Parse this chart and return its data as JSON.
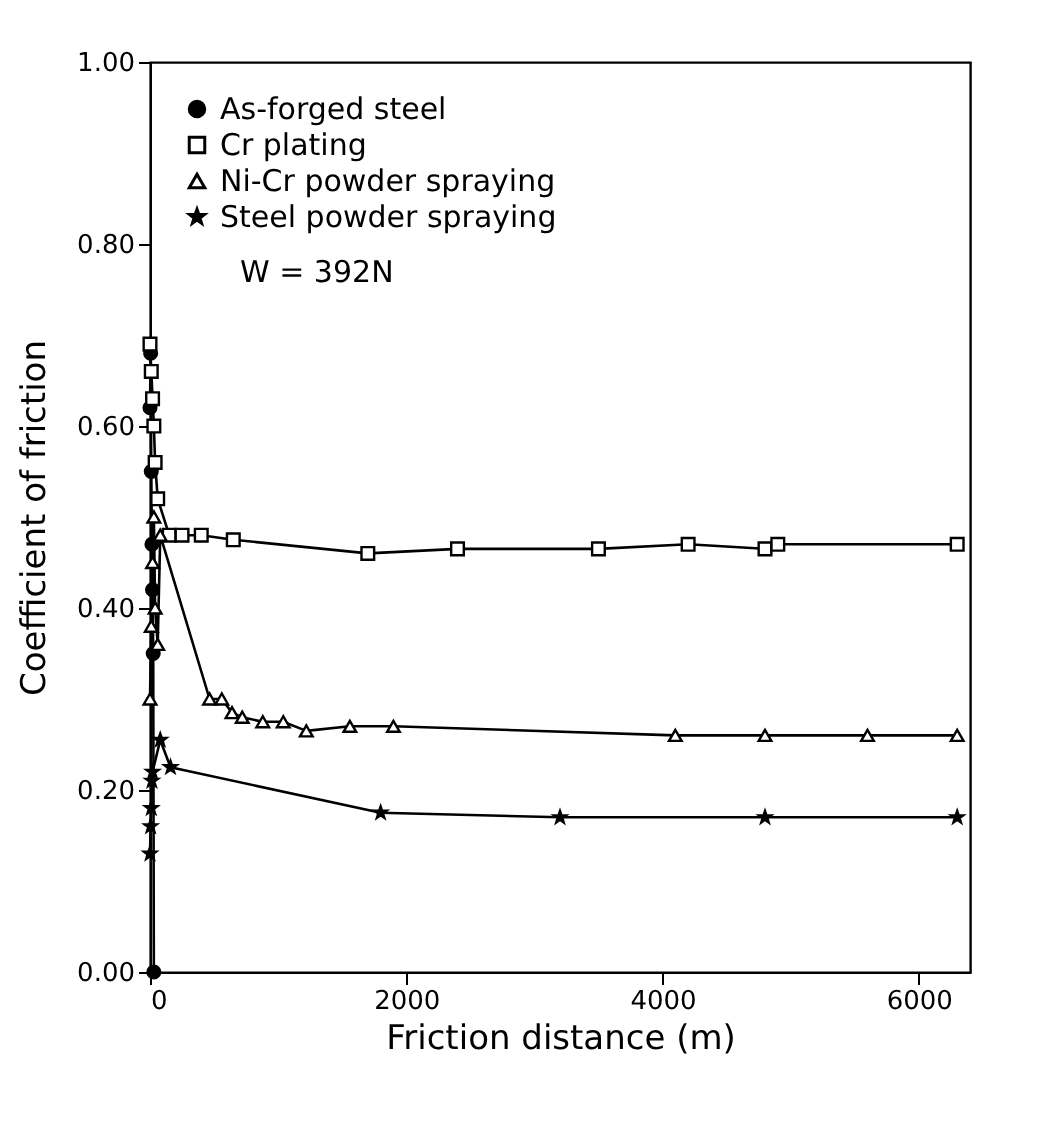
{
  "chart_data": {
    "type": "line",
    "xlabel": "Friction distance (m)",
    "ylabel": "Coefficient of friction",
    "xlim": [
      0,
      6400
    ],
    "xticks": [
      0,
      2000,
      4000,
      6000
    ],
    "ylim": [
      0,
      1
    ],
    "yticks": [
      {
        "value": 0,
        "label": "0.00"
      },
      {
        "value": 0.2,
        "label": "0.20"
      },
      {
        "value": 0.4,
        "label": "0.40"
      },
      {
        "value": 0.6,
        "label": "0.60"
      },
      {
        "value": 0.8,
        "label": "0.80"
      },
      {
        "value": 1,
        "label": "1.00"
      }
    ],
    "legend": "top left",
    "grid": false,
    "line_style": "solid",
    "annotations": [
      "W = 392N"
    ],
    "series": [
      {
        "name": "As-forged steel",
        "color": "#000000",
        "marker": "circle",
        "x": [
          0,
          5,
          10,
          15,
          20,
          25,
          30
        ],
        "values": [
          0.62,
          0.68,
          0.55,
          0.47,
          0.42,
          0.35,
          0.0
        ]
      },
      {
        "name": "Cr plating",
        "color": "#000000",
        "marker": "square",
        "x": [
          0,
          10,
          20,
          30,
          40,
          60,
          150,
          250,
          400,
          650,
          1700,
          2400,
          3500,
          4200,
          4800,
          4900,
          6300
        ],
        "values": [
          0.69,
          0.66,
          0.63,
          0.6,
          0.56,
          0.52,
          0.48,
          0.48,
          0.48,
          0.475,
          0.46,
          0.465,
          0.465,
          0.47,
          0.465,
          0.47,
          0.47
        ]
      },
      {
        "name": "Ni-Cr powder spraying",
        "color": "#000000",
        "marker": "triangle",
        "x": [
          0,
          10,
          20,
          30,
          40,
          60,
          80,
          465,
          560,
          640,
          720,
          880,
          1040,
          1220,
          1560,
          1900,
          4100,
          4800,
          5600,
          6300
        ],
        "values": [
          0.3,
          0.38,
          0.45,
          0.5,
          0.4,
          0.36,
          0.48,
          0.3,
          0.3,
          0.285,
          0.28,
          0.275,
          0.275,
          0.265,
          0.27,
          0.27,
          0.26,
          0.26,
          0.26,
          0.26
        ]
      },
      {
        "name": "Steel powder spraying",
        "color": "#000000",
        "marker": "star",
        "x": [
          0,
          5,
          10,
          15,
          20,
          80,
          160,
          1800,
          3200,
          4800,
          6300
        ],
        "values": [
          0.13,
          0.16,
          0.18,
          0.21,
          0.22,
          0.255,
          0.225,
          0.175,
          0.17,
          0.17,
          0.17
        ]
      }
    ]
  }
}
